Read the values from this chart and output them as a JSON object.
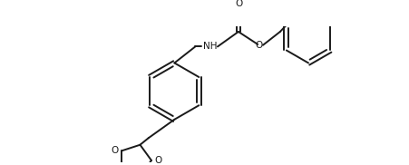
{
  "line_color": "#1a1a1a",
  "background_color": "#ffffff",
  "line_width": 1.4,
  "figsize": [
    4.52,
    1.82
  ],
  "dpi": 100,
  "xlim": [
    0,
    452
  ],
  "ylim": [
    0,
    182
  ]
}
